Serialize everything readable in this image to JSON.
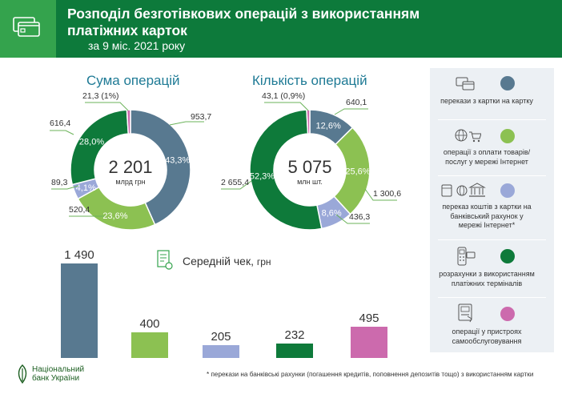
{
  "header": {
    "title": "Розподіл безготівкових операцій з використанням платіжних карток",
    "subtitle": "за 9 міс. 2021 року"
  },
  "colors": {
    "header_bar": "#0d7a3b",
    "header_icon_box": "#34a34d",
    "card_to_card": "#587990",
    "internet_payments": "#8cc152",
    "transfer_bank_account": "#9aa8d8",
    "terminals": "#0e7a3a",
    "self_service": "#cc6aad"
  },
  "legend": {
    "items": [
      {
        "label": "перекази з картки на картку",
        "color": "#587990",
        "icon": "card-to-card-icon"
      },
      {
        "label": "операції з оплати товарів/ послуг у мережі Інтернет",
        "color": "#8cc152",
        "icon": "globe-cart-icon"
      },
      {
        "label": "переказ коштів з картки на банківський рахунок у мережі Інтернет*",
        "color": "#9aa8d8",
        "icon": "card-globe-bank-icon"
      },
      {
        "label": "розрахунки з використанням платіжних терміналів",
        "color": "#0e7a3a",
        "icon": "pos-terminal-icon"
      },
      {
        "label": "операції у пристроях самообслуговування",
        "color": "#cc6aad",
        "icon": "atm-icon"
      }
    ]
  },
  "chart_data": [
    {
      "type": "pie",
      "title": "Сума операцій",
      "center_value": "2 201",
      "center_unit": "млрд грн",
      "slices": [
        {
          "category": "перекази з картки на картку",
          "value": 953.7,
          "value_label": "953,7",
          "pct": 43.3,
          "pct_label": "43,3%"
        },
        {
          "category": "операції з оплати товарів/ послуг у мережі Інтернет",
          "value": 520.4,
          "value_label": "520,4",
          "pct": 23.6,
          "pct_label": "23,6%"
        },
        {
          "category": "переказ коштів з картки на банківський рахунок у мережі Інтернет*",
          "value": 89.3,
          "value_label": "89,3",
          "pct": 4.1,
          "pct_label": "4,1%"
        },
        {
          "category": "розрахунки з використанням платіжних терміналів",
          "value": 616.4,
          "value_label": "616,4",
          "pct": 28.0,
          "pct_label": "28,0%"
        },
        {
          "category": "операції у пристроях самообслуговування",
          "value": 21.3,
          "value_label": "21,3 (1%)",
          "pct": 1.0,
          "pct_label": ""
        }
      ]
    },
    {
      "type": "pie",
      "title": "Кількість операцій",
      "center_value": "5 075",
      "center_unit": "млн шт.",
      "slices": [
        {
          "category": "перекази з картки на картку",
          "value": 640.1,
          "value_label": "640,1",
          "pct": 12.6,
          "pct_label": "12,6%"
        },
        {
          "category": "операції з оплати товарів/ послуг у мережі Інтернет",
          "value": 1300.6,
          "value_label": "1 300,6",
          "pct": 25.6,
          "pct_label": "25,6%"
        },
        {
          "category": "переказ коштів з картки на банківський рахунок у мережі Інтернет*",
          "value": 436.3,
          "value_label": "436,3",
          "pct": 8.6,
          "pct_label": "8,6%"
        },
        {
          "category": "розрахунки з використанням платіжних терміналів",
          "value": 2655.4,
          "value_label": "2 655,4",
          "pct": 52.3,
          "pct_label": "52,3%"
        },
        {
          "category": "операції у пристроях самообслуговування",
          "value": 43.1,
          "value_label": "43,1 (0,9%)",
          "pct": 0.9,
          "pct_label": ""
        }
      ]
    },
    {
      "type": "bar",
      "title": "Середній чек,",
      "title_unit": "грн",
      "categories": [
        "перекази з картки на картку",
        "операції з оплати товарів/ послуг у мережі Інтернет",
        "переказ коштів з картки на банківський рахунок у мережі Інтернет*",
        "розрахунки з використанням платіжних терміналів",
        "операції у пристроях самообслуговування"
      ],
      "values": [
        1490,
        400,
        205,
        232,
        495
      ],
      "value_labels": [
        "1 490",
        "400",
        "205",
        "232",
        "495"
      ],
      "colors": [
        "#587990",
        "#8cc152",
        "#9aa8d8",
        "#0e7a3a",
        "#cc6aad"
      ]
    }
  ],
  "footer": {
    "logo_line1": "Національний",
    "logo_line2": "банк України",
    "footnote": "* перекази на банківські рахунки (погашення кредитів, поповнення депозитів тощо) з використанням картки"
  }
}
